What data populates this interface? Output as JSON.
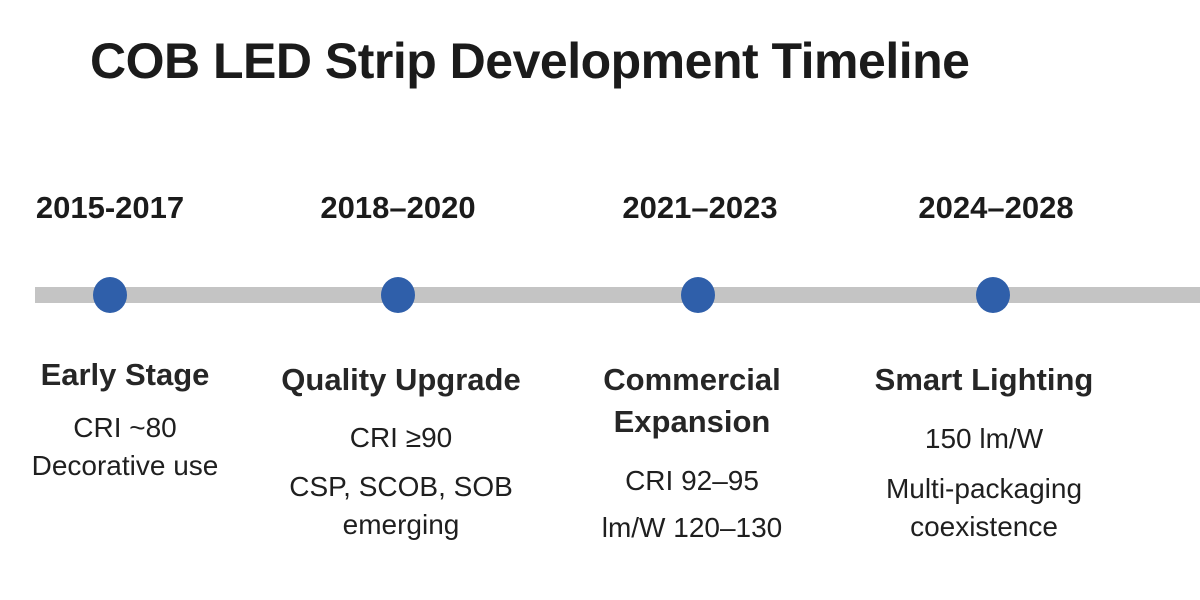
{
  "title": "COB LED Strip Development Timeline",
  "colors": {
    "marker": "#2f5faa",
    "bar": "#c4c4c4",
    "text": "#1b1b1b"
  },
  "stages": [
    {
      "years": "2015-2017",
      "title": "Early Stage",
      "details": [
        "CRI ~80",
        "Decorative use"
      ]
    },
    {
      "years": "2018–2020",
      "title": "Quality Upgrade",
      "details": [
        "CRI ≥90",
        "CSP, SCOB, SOB",
        "emerging"
      ]
    },
    {
      "years": "2021–2023",
      "title": "Commercial Expansion",
      "details": [
        "CRI 92–95",
        "lm/W 120–130"
      ]
    },
    {
      "years": "2024–2028",
      "title": "Smart Lighting",
      "details": [
        "150 lm/W",
        "Multi-packaging",
        "coexistence"
      ]
    }
  ]
}
